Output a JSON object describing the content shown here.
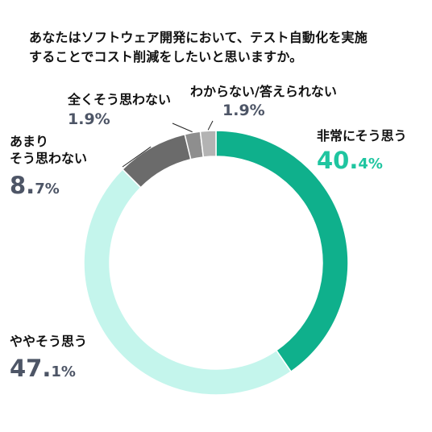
{
  "chart_data": {
    "type": "pie",
    "title_lines": [
      "あなたはソフトウェア開発において、テスト自動化を実施",
      "することでコスト削減をしたいと思いますか。"
    ],
    "slices": [
      {
        "label_lines": [
          "非常にそう思う"
        ],
        "value": 40.4,
        "value_text": "40.4%",
        "pct_main": "40.",
        "pct_tail": "4%",
        "color": "#0fb08c",
        "label_color": "#1fc5a0"
      },
      {
        "label_lines": [
          "ややそう思う"
        ],
        "value": 47.1,
        "value_text": "47.1%",
        "pct_main": "47.",
        "pct_tail": "1%",
        "color": "#c4f5ec",
        "label_color": "#4d5566"
      },
      {
        "label_lines": [
          "あまり",
          "そう思わない"
        ],
        "value": 8.7,
        "value_text": "8.7%",
        "pct_main": "8.",
        "pct_tail": "7%",
        "color": "#6b6b6b",
        "label_color": "#4d5566"
      },
      {
        "label_lines": [
          "全くそう思わない"
        ],
        "value": 1.9,
        "value_text": "1.9%",
        "pct_main": "1.9%",
        "pct_tail": "",
        "color": "#8e8e8e",
        "label_color": "#4d5566"
      },
      {
        "label_lines": [
          "わからない/答えられない"
        ],
        "value": 1.9,
        "value_text": "1.9%",
        "pct_main": "1.9%",
        "pct_tail": "",
        "color": "#b3b3b3",
        "label_color": "#4d5566"
      }
    ],
    "start_angle_deg": 0,
    "direction": "clockwise",
    "donut": true,
    "legend": "none"
  }
}
